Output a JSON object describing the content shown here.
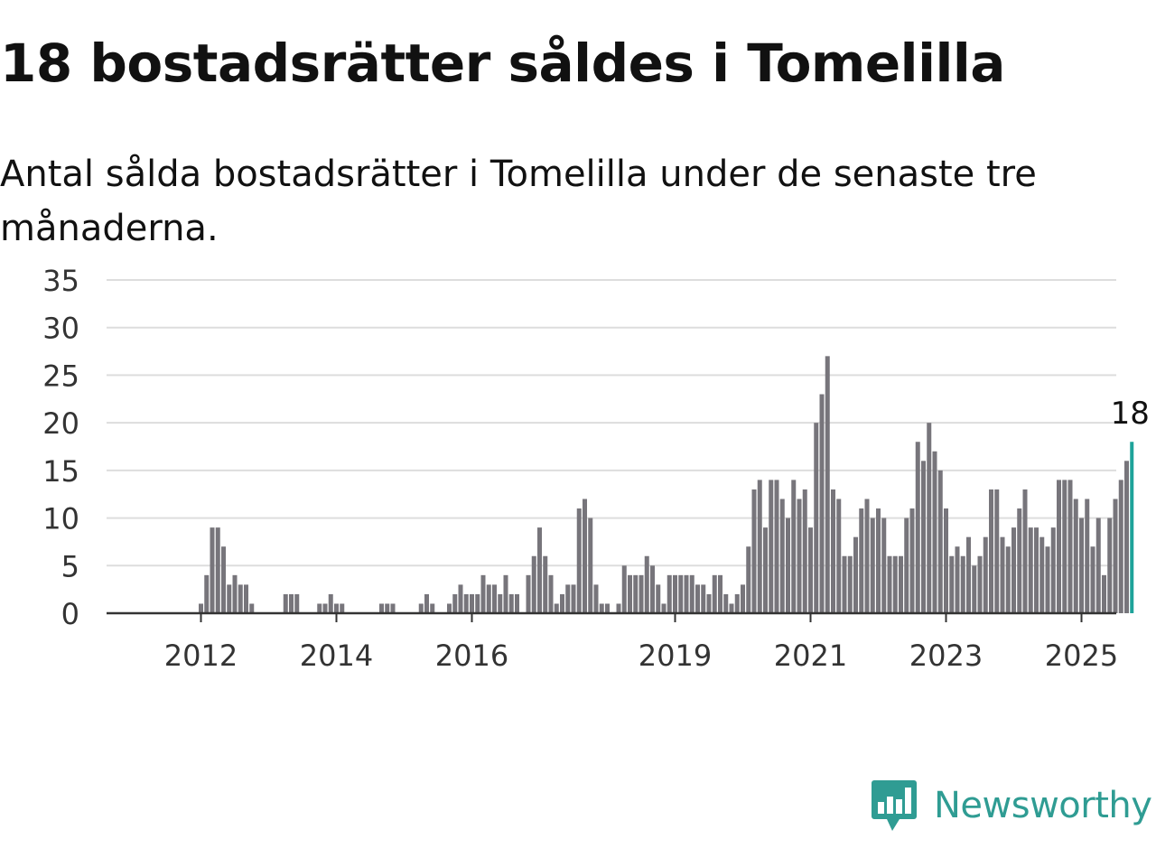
{
  "header": {
    "title": "18 bostadsrätter såldes i Tomelilla",
    "subtitle": "Antal sålda bostadsrätter i Tomelilla under de senaste tre månaderna."
  },
  "brand": {
    "name": "Newsworthy",
    "logo_icon": "bar-chart-speech-bubble-icon",
    "color": "#2f9c93"
  },
  "colors": {
    "bar": "#77757b",
    "highlight": "#1ea39a",
    "grid": "#dddddd",
    "axis": "#333333"
  },
  "chart_data": {
    "type": "bar",
    "title": "18 bostadsrätter såldes i Tomelilla",
    "subtitle": "Antal sålda bostadsrätter i Tomelilla under de senaste tre månaderna.",
    "xlabel": "",
    "ylabel": "",
    "ylim": [
      0,
      35
    ],
    "yticks": [
      0,
      5,
      10,
      15,
      20,
      25,
      30,
      35
    ],
    "grid": true,
    "x_start": "2011-05",
    "xtick_labels": [
      {
        "label": "2012",
        "period": "2012-01"
      },
      {
        "label": "2014",
        "period": "2014-01"
      },
      {
        "label": "2016",
        "period": "2016-01"
      },
      {
        "label": "2019",
        "period": "2019-01"
      },
      {
        "label": "2021",
        "period": "2021-01"
      },
      {
        "label": "2023",
        "period": "2023-01"
      },
      {
        "label": "2025",
        "period": "2025-01"
      }
    ],
    "highlight_label": "18",
    "values": [
      0,
      0,
      0,
      0,
      0,
      0,
      0,
      0,
      1,
      4,
      9,
      9,
      7,
      3,
      4,
      3,
      3,
      1,
      0,
      0,
      0,
      0,
      0,
      2,
      2,
      2,
      0,
      0,
      0,
      1,
      1,
      2,
      1,
      1,
      0,
      0,
      0,
      0,
      0,
      0,
      1,
      1,
      1,
      0,
      0,
      0,
      0,
      1,
      2,
      1,
      0,
      0,
      1,
      2,
      3,
      2,
      2,
      2,
      4,
      3,
      3,
      2,
      4,
      2,
      2,
      0,
      4,
      6,
      9,
      6,
      4,
      1,
      2,
      3,
      3,
      11,
      12,
      10,
      3,
      1,
      1,
      0,
      1,
      5,
      4,
      4,
      4,
      6,
      5,
      3,
      1,
      4,
      4,
      4,
      4,
      4,
      3,
      3,
      2,
      4,
      4,
      2,
      1,
      2,
      3,
      7,
      13,
      14,
      9,
      14,
      14,
      12,
      10,
      14,
      12,
      13,
      9,
      20,
      23,
      27,
      13,
      12,
      6,
      6,
      8,
      11,
      12,
      10,
      11,
      10,
      6,
      6,
      6,
      10,
      11,
      18,
      16,
      20,
      17,
      15,
      11,
      6,
      7,
      6,
      8,
      5,
      6,
      8,
      13,
      13,
      8,
      7,
      9,
      11,
      13,
      9,
      9,
      8,
      7,
      9,
      14,
      14,
      14,
      12,
      10,
      12,
      7,
      10,
      4,
      10,
      12,
      14,
      16,
      18
    ]
  }
}
